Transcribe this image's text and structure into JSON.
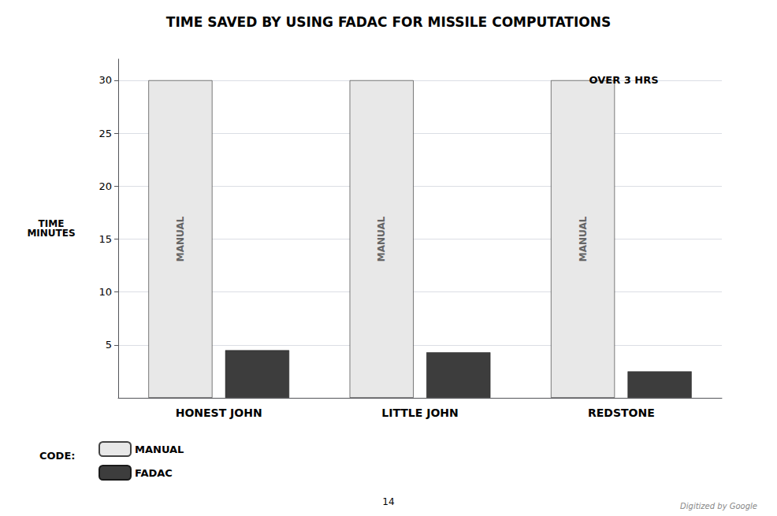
{
  "chart_data": {
    "type": "bar",
    "title": "TIME SAVED BY USING FADAC FOR MISSILE COMPUTATIONS",
    "ylabel": "TIME\nMINUTES",
    "categories": [
      "HONEST JOHN",
      "LITTLE JOHN",
      "REDSTONE"
    ],
    "series": [
      {
        "name": "MANUAL",
        "color": "#e8e8e8",
        "values": [
          30,
          30,
          30
        ]
      },
      {
        "name": "FADAC",
        "color": "#3d3d3d",
        "values": [
          4.5,
          4.3,
          2.5
        ]
      }
    ],
    "ylim": [
      0,
      32
    ],
    "yticks": [
      5,
      10,
      15,
      20,
      25,
      30
    ],
    "grid": true,
    "legend": "lower left",
    "legend_title": "CODE:",
    "annotations": [
      {
        "text": "OVER 3 HRS",
        "category": "REDSTONE",
        "series": "MANUAL"
      }
    ],
    "page_number": "14",
    "footer": "Digitized by Google"
  }
}
